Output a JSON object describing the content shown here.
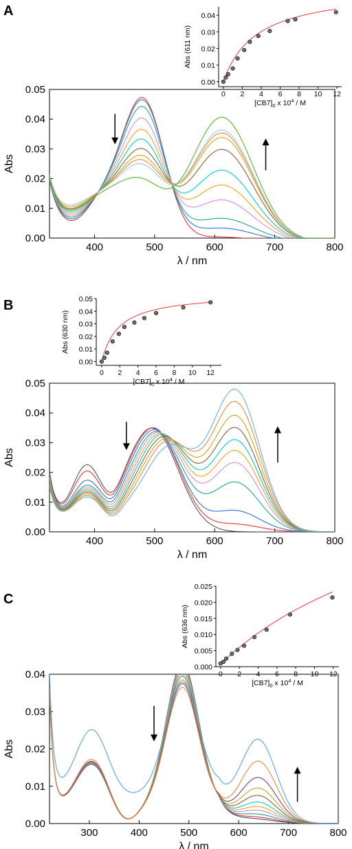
{
  "chart_data": [
    {
      "panel": "A",
      "type": "line",
      "xlabel": "λ / nm",
      "ylabel": "Abs",
      "xlim": [
        325,
        800
      ],
      "ylim": [
        0,
        0.05
      ],
      "xticks": [
        "400",
        "500",
        "600",
        "700",
        "800"
      ],
      "yticks": [
        "0.00",
        "0.01",
        "0.02",
        "0.03",
        "0.04",
        "0.05"
      ],
      "grid": false,
      "isosbestic_points": [
        [
          399,
          0.0118
        ],
        [
          531,
          0.0208
        ]
      ],
      "arrows": [
        {
          "direction": "down",
          "x": 434,
          "y_from": 0.0418,
          "y_to": 0.0315
        },
        {
          "direction": "up",
          "x": 685,
          "y_from": 0.0228,
          "y_to": 0.0335
        }
      ],
      "spectra": [
        {
          "color": "#E8312F",
          "peak1": [
            484,
            0.0465
          ],
          "peak2": [
            612,
            0.0015
          ],
          "min_value": 0.0065
        },
        {
          "color": "#2F6FD2",
          "peak1": [
            484,
            0.0456
          ],
          "peak2": [
            612,
            0.0045
          ],
          "min_value": 0.0071
        },
        {
          "color": "#1FA38A",
          "peak1": [
            484,
            0.0432
          ],
          "peak2": [
            612,
            0.0078
          ],
          "min_value": 0.0077
        },
        {
          "color": "#D58BE0",
          "peak1": [
            484,
            0.039
          ],
          "peak2": [
            612,
            0.014
          ],
          "min_value": 0.0083
        },
        {
          "color": "#F2A01B",
          "peak1": [
            484,
            0.035
          ],
          "peak2": [
            612,
            0.019
          ],
          "min_value": 0.0089
        },
        {
          "color": "#00C8D7",
          "peak1": [
            484,
            0.0315
          ],
          "peak2": [
            612,
            0.024
          ],
          "min_value": 0.0095
        },
        {
          "color": "#8B5A3C",
          "peak1": [
            484,
            0.028
          ],
          "peak2": [
            612,
            0.031
          ],
          "min_value": 0.0101
        },
        {
          "color": "#C7A71A",
          "peak1": [
            484,
            0.0255
          ],
          "peak2": [
            612,
            0.035
          ],
          "min_value": 0.0107
        },
        {
          "color": "#E8873A",
          "peak1": [
            484,
            0.024
          ],
          "peak2": [
            612,
            0.0365
          ],
          "min_value": 0.0113
        },
        {
          "color": "#A0C4F0",
          "peak1": [
            484,
            0.0225
          ],
          "peak2": [
            612,
            0.0375
          ],
          "min_value": 0.0119
        },
        {
          "color": "#55B32A",
          "peak1": [
            484,
            0.0175
          ],
          "peak2": [
            612,
            0.0418
          ],
          "min_value": 0.0105
        }
      ],
      "inset": {
        "type": "scatter",
        "xlabel": "[CB7]0 x 10^4 / M",
        "xlabel_parts": [
          "[CB7]",
          "0",
          " x 10",
          "4",
          " / M"
        ],
        "ylabel": "Abs (611 nm)",
        "xlim": [
          -0.5,
          12.5
        ],
        "ylim": [
          -0.003,
          0.045
        ],
        "xticks": [
          "0",
          "2",
          "4",
          "6",
          "8",
          "10",
          "12"
        ],
        "yticks": [
          "0.00",
          "0.01",
          "0.02",
          "0.03",
          "0.04"
        ],
        "x": [
          0,
          0.25,
          0.5,
          1.0,
          1.5,
          2.2,
          2.8,
          3.7,
          4.9,
          6.8,
          7.6,
          11.9
        ],
        "y": [
          0.0,
          0.0025,
          0.0045,
          0.008,
          0.014,
          0.019,
          0.024,
          0.0275,
          0.0305,
          0.0365,
          0.0375,
          0.0418
        ],
        "fit_color": "#E8474B",
        "fit_vmax": 0.0565,
        "fit_k": 3.5
      }
    },
    {
      "panel": "B",
      "type": "line",
      "xlabel": "λ / nm",
      "ylabel": "Abs",
      "xlim": [
        325,
        800
      ],
      "ylim": [
        0,
        0.05
      ],
      "xticks": [
        "400",
        "500",
        "600",
        "700",
        "800"
      ],
      "yticks": [
        "0.00",
        "0.01",
        "0.02",
        "0.03",
        "0.04",
        "0.05"
      ],
      "grid": false,
      "arrows": [
        {
          "direction": "down",
          "x": 453,
          "y_from": 0.037,
          "y_to": 0.0275
        },
        {
          "direction": "up",
          "x": 705,
          "y_from": 0.0233,
          "y_to": 0.0355
        }
      ],
      "spectra": [
        {
          "color": "#555555",
          "peak1": [
            498,
            0.0328
          ],
          "peak2": [
            635,
            0.0
          ],
          "band3": 0.016
        },
        {
          "color": "#E8312F",
          "peak1": [
            500,
            0.033
          ],
          "peak2": [
            635,
            0.0025
          ],
          "band3": 0.014
        },
        {
          "color": "#2F6FD2",
          "peak1": [
            502,
            0.0325
          ],
          "peak2": [
            635,
            0.007
          ],
          "band3": 0.011
        },
        {
          "color": "#1FA38A",
          "peak1": [
            505,
            0.032
          ],
          "peak2": [
            635,
            0.0165
          ],
          "band3": 0.0095
        },
        {
          "color": "#D58BE0",
          "peak1": [
            508,
            0.0318
          ],
          "peak2": [
            635,
            0.023
          ],
          "band3": 0.009
        },
        {
          "color": "#F2A01B",
          "peak1": [
            511,
            0.0315
          ],
          "peak2": [
            635,
            0.027
          ],
          "band3": 0.0085
        },
        {
          "color": "#00C8D7",
          "peak1": [
            514,
            0.0312
          ],
          "peak2": [
            635,
            0.0305
          ],
          "band3": 0.008
        },
        {
          "color": "#8B5A3C",
          "peak1": [
            517,
            0.0305
          ],
          "peak2": [
            635,
            0.0345
          ],
          "band3": 0.0075
        },
        {
          "color": "#C7A71A",
          "peak1": [
            520,
            0.0298
          ],
          "peak2": [
            635,
            0.0385
          ],
          "band3": 0.007
        },
        {
          "color": "#E8873A",
          "peak1": [
            523,
            0.029
          ],
          "peak2": [
            635,
            0.043
          ],
          "band3": 0.0065
        },
        {
          "color": "#6AAFE0",
          "peak1": [
            526,
            0.0272
          ],
          "peak2": [
            635,
            0.047
          ],
          "band3": 0.006
        }
      ],
      "inset": {
        "type": "scatter",
        "xlabel": "[CB7]0 x 10^4 / M",
        "xlabel_parts": [
          "[CB7]",
          "0",
          " x 10",
          "4",
          " / M"
        ],
        "ylabel": "Abs (630 nm)",
        "xlim": [
          -0.6,
          13.2
        ],
        "ylim": [
          -0.003,
          0.05
        ],
        "xticks": [
          "0",
          "2",
          "4",
          "6",
          "8",
          "10",
          "12"
        ],
        "yticks": [
          "0.00",
          "0.01",
          "0.02",
          "0.03",
          "0.04",
          "0.05"
        ],
        "x": [
          0,
          0.3,
          0.6,
          1.2,
          1.9,
          2.5,
          3.6,
          4.7,
          6.0,
          9.0,
          12.0
        ],
        "y": [
          0.0,
          0.003,
          0.007,
          0.016,
          0.022,
          0.0275,
          0.031,
          0.0345,
          0.0385,
          0.043,
          0.047
        ],
        "fit_color": "#E8474B",
        "fit_vmax": 0.0545,
        "fit_k": 1.9
      }
    },
    {
      "panel": "C",
      "type": "line",
      "xlabel": "λ / nm",
      "ylabel": "Abs",
      "xlim": [
        220,
        800
      ],
      "ylim": [
        0,
        0.04
      ],
      "xticks": [
        "300",
        "400",
        "500",
        "600",
        "700",
        "800"
      ],
      "yticks": [
        "0.00",
        "0.01",
        "0.02",
        "0.03",
        "0.04"
      ],
      "grid": false,
      "isosbestic_points": [
        [
          460,
          0.027
        ],
        [
          565,
          0.012
        ]
      ],
      "arrows": [
        {
          "direction": "down",
          "x": 430,
          "y_from": 0.0315,
          "y_to": 0.022
        },
        {
          "direction": "up",
          "x": 718,
          "y_from": 0.0058,
          "y_to": 0.0152
        }
      ],
      "spectra": [
        {
          "color": "#2F4F9A",
          "peak1": [
            487,
            0.0388
          ],
          "peak2": [
            640,
            0.0007
          ],
          "band3": 0.012
        },
        {
          "color": "#E8312F",
          "peak1": [
            487,
            0.0386
          ],
          "peak2": [
            640,
            0.0012
          ],
          "band3": 0.0121
        },
        {
          "color": "#1FA38A",
          "peak1": [
            487,
            0.0382
          ],
          "peak2": [
            640,
            0.002
          ],
          "band3": 0.0122
        },
        {
          "color": "#D58BE0",
          "peak1": [
            487,
            0.0378
          ],
          "peak2": [
            640,
            0.003
          ],
          "band3": 0.0123
        },
        {
          "color": "#F2A01B",
          "peak1": [
            487,
            0.0372
          ],
          "peak2": [
            640,
            0.004
          ],
          "band3": 0.0124
        },
        {
          "color": "#00C8D7",
          "peak1": [
            487,
            0.0365
          ],
          "peak2": [
            640,
            0.0052
          ],
          "band3": 0.0125
        },
        {
          "color": "#8B5A3C",
          "peak1": [
            487,
            0.0355
          ],
          "peak2": [
            640,
            0.007
          ],
          "band3": 0.0126
        },
        {
          "color": "#C7A71A",
          "peak1": [
            487,
            0.0345
          ],
          "peak2": [
            640,
            0.009
          ],
          "band3": 0.0127
        },
        {
          "color": "#6B3FA0",
          "peak1": [
            487,
            0.0335
          ],
          "peak2": [
            640,
            0.0118
          ],
          "band3": 0.0128
        },
        {
          "color": "#E8873A",
          "peak1": [
            487,
            0.0325
          ],
          "peak2": [
            640,
            0.0162
          ],
          "band3": 0.0133
        },
        {
          "color": "#5AA0D8",
          "peak1": [
            487,
            0.03
          ],
          "peak2": [
            640,
            0.0215
          ],
          "band3": 0.0172
        }
      ],
      "inset": {
        "type": "scatter",
        "xlabel": "[CB7]0 x 10^4 / M",
        "xlabel_parts": [
          "[CB7]",
          "0",
          " x 10",
          "4",
          " / M"
        ],
        "ylabel": "Abs (636 nm)",
        "xlim": [
          -0.5,
          12.6
        ],
        "ylim": [
          0,
          0.025
        ],
        "xticks": [
          "0",
          "2",
          "4",
          "6",
          "8",
          "10",
          "12"
        ],
        "yticks": [
          "0.000",
          "0.005",
          "0.010",
          "0.015",
          "0.020",
          "0.025"
        ],
        "x": [
          0,
          0.3,
          0.6,
          1.2,
          1.8,
          2.5,
          3.6,
          4.9,
          7.4,
          11.9
        ],
        "y": [
          0.001,
          0.0015,
          0.0025,
          0.004,
          0.0052,
          0.0065,
          0.0092,
          0.0115,
          0.0162,
          0.0215
        ],
        "fit_color": "#E8474B",
        "fit_vmax": 0.0675,
        "fit_k": 24.0,
        "fit_y0": 0.0008
      }
    }
  ]
}
